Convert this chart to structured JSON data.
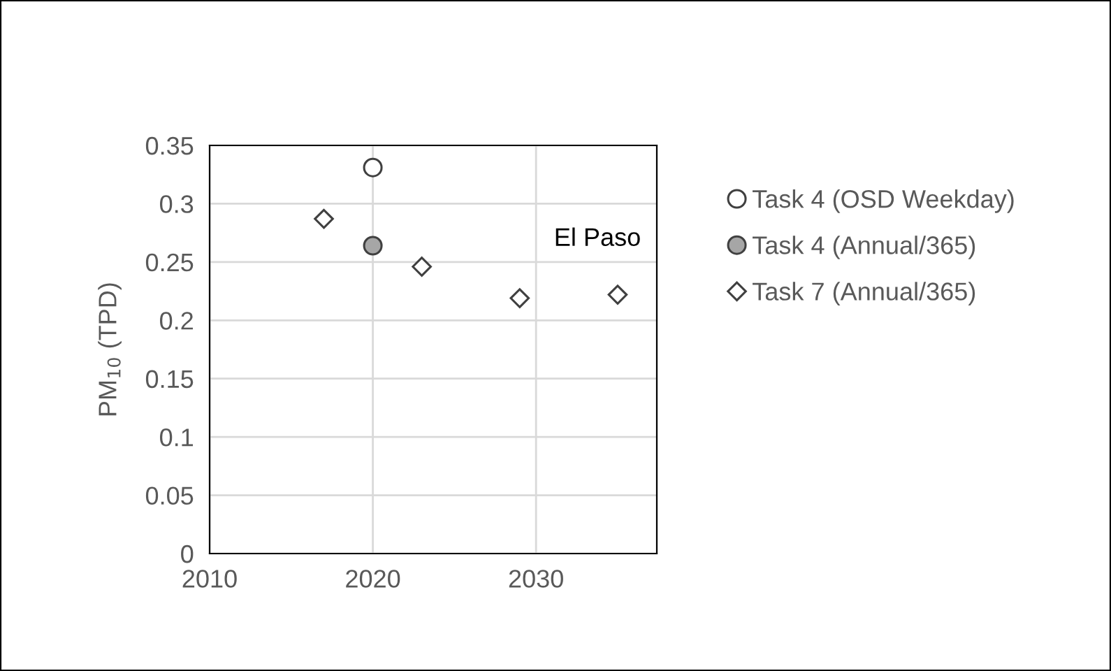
{
  "chart_data": {
    "type": "scatter",
    "ylabel": "PM$_{10}$ (TPD)",
    "xlim": [
      2010,
      2037.4
    ],
    "xticks": [
      2010,
      2020,
      2030
    ],
    "ylim": [
      0,
      0.35
    ],
    "yticks": [
      0,
      0.05,
      0.1,
      0.15,
      0.2,
      0.25,
      0.3,
      0.35
    ],
    "grid": true,
    "legend": "right",
    "annotations": [
      "El Paso"
    ],
    "series": [
      {
        "name": "Task 4 (OSD Weekday)",
        "color": "#ffffff",
        "marker": "circle",
        "x": [
          2020
        ],
        "values": [
          0.331
        ]
      },
      {
        "name": "Task 4 (Annual/365)",
        "color": "#a6a6a6",
        "marker": "circle",
        "x": [
          2020
        ],
        "values": [
          0.264
        ]
      },
      {
        "name": "Task 7 (Annual/365)",
        "color": "#ffffff",
        "marker": "diamond",
        "x": [
          2017,
          2023,
          2029,
          2035
        ],
        "values": [
          0.287,
          0.246,
          0.219,
          0.222
        ]
      }
    ]
  }
}
